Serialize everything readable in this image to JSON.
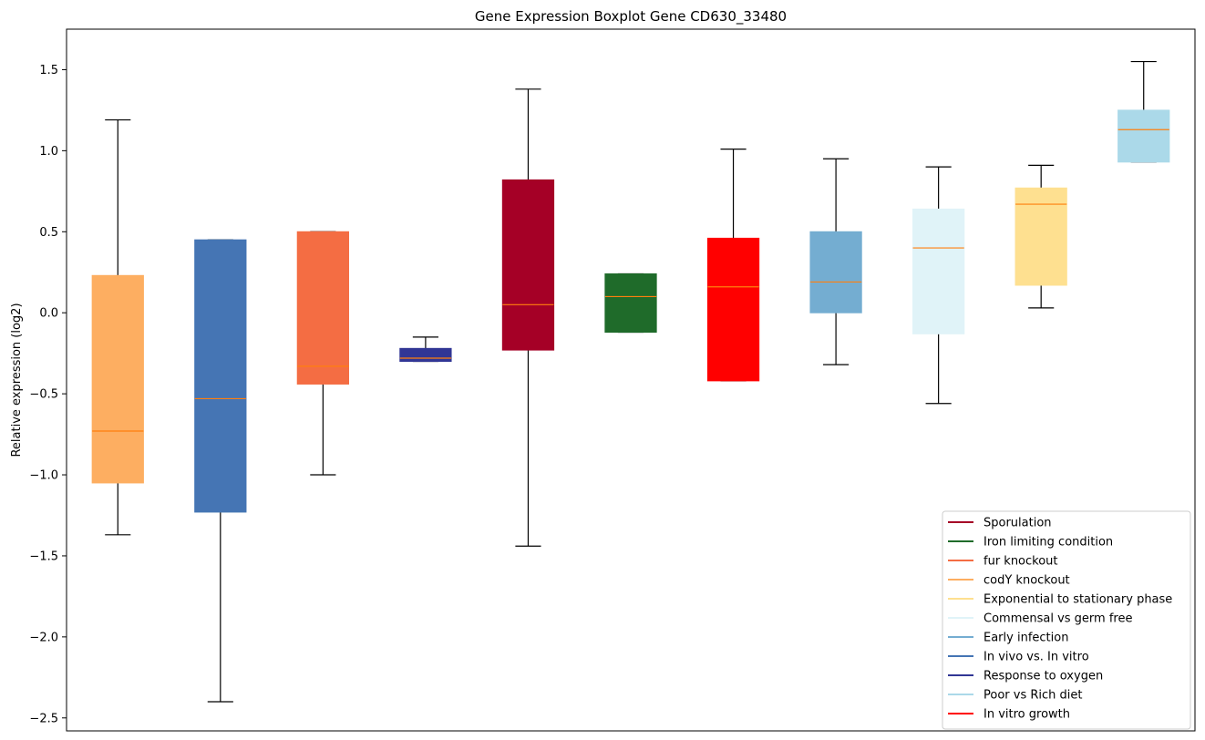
{
  "chart_data": {
    "type": "boxplot",
    "title": "Gene Expression Boxplot Gene CD630_33480",
    "xlabel": "",
    "ylabel": "Relative expression (log2)",
    "ylim": [
      -2.58,
      1.75
    ],
    "yticks": [
      -2.5,
      -2.0,
      -1.5,
      -1.0,
      -0.5,
      0.0,
      0.5,
      1.0,
      1.5
    ],
    "ytick_labels": [
      "−2.5",
      "−2.0",
      "−1.5",
      "−1.0",
      "−0.5",
      "0.0",
      "0.5",
      "1.0",
      "1.5"
    ],
    "grid": false,
    "legend_position": "lower-right",
    "median_color": "#ff7f0e",
    "boxes": [
      {
        "color": "#fdae61",
        "whisker_low": -1.37,
        "q1": -1.05,
        "median": -0.73,
        "q3": 0.23,
        "whisker_high": 1.19
      },
      {
        "color": "#4575b4",
        "whisker_low": -2.4,
        "q1": -1.23,
        "median": -0.53,
        "q3": 0.45,
        "whisker_high": 0.45
      },
      {
        "color": "#f46d43",
        "whisker_low": -1.0,
        "q1": -0.44,
        "median": -0.33,
        "q3": 0.5,
        "whisker_high": 0.5
      },
      {
        "color": "#313695",
        "whisker_low": -0.3,
        "q1": -0.3,
        "median": -0.28,
        "q3": -0.22,
        "whisker_high": -0.15
      },
      {
        "color": "#a50026",
        "whisker_low": -1.44,
        "q1": -0.23,
        "median": 0.05,
        "q3": 0.82,
        "whisker_high": 1.38
      },
      {
        "color": "#1f6b2a",
        "whisker_low": -0.12,
        "q1": -0.12,
        "median": 0.1,
        "q3": 0.24,
        "whisker_high": 0.24
      },
      {
        "color": "#ff0000",
        "whisker_low": -0.42,
        "q1": -0.42,
        "median": 0.16,
        "q3": 0.46,
        "whisker_high": 1.01
      },
      {
        "color": "#74add1",
        "whisker_low": -0.32,
        "q1": 0.0,
        "median": 0.19,
        "q3": 0.5,
        "whisker_high": 0.95
      },
      {
        "color": "#e0f3f8",
        "whisker_low": -0.56,
        "q1": -0.13,
        "median": 0.4,
        "q3": 0.64,
        "whisker_high": 0.9
      },
      {
        "color": "#fee090",
        "whisker_low": 0.03,
        "q1": 0.17,
        "median": 0.67,
        "q3": 0.77,
        "whisker_high": 0.91
      },
      {
        "color": "#abd9e9",
        "whisker_low": 0.93,
        "q1": 0.93,
        "median": 1.13,
        "q3": 1.25,
        "whisker_high": 1.55
      }
    ],
    "legend": [
      {
        "name": "Sporulation",
        "color": "#a50026"
      },
      {
        "name": "Iron limiting condition",
        "color": "#1f6b2a"
      },
      {
        "name": "fur knockout",
        "color": "#f46d43"
      },
      {
        "name": "codY knockout",
        "color": "#fdae61"
      },
      {
        "name": "Exponential to stationary phase",
        "color": "#fee090"
      },
      {
        "name": "Commensal vs germ free",
        "color": "#e0f3f8"
      },
      {
        "name": "Early infection",
        "color": "#74add1"
      },
      {
        "name": "In vivo vs. In vitro",
        "color": "#4575b4"
      },
      {
        "name": "Response to oxygen",
        "color": "#313695"
      },
      {
        "name": "Poor vs Rich diet",
        "color": "#abd9e9"
      },
      {
        "name": "In vitro growth",
        "color": "#ff0000"
      }
    ]
  }
}
